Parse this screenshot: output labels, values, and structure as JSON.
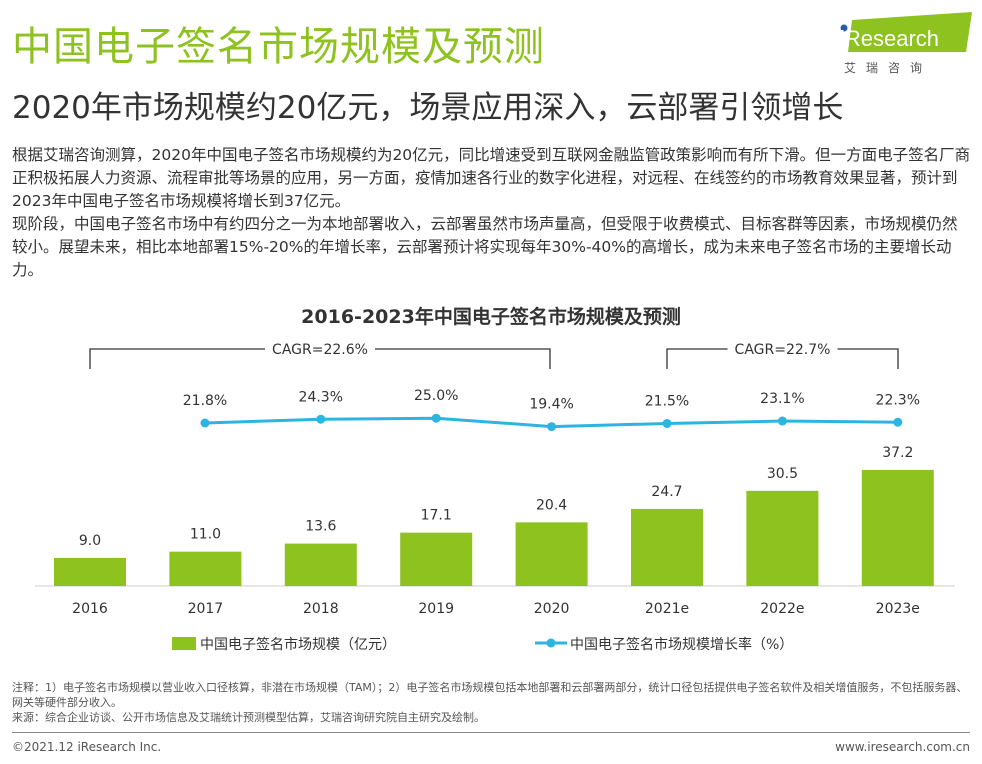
{
  "header": {
    "title": "中国电子签名市场规模及预测",
    "subtitle": "2020年市场规模约20亿元，场景应用深入，云部署引领增长"
  },
  "logo": {
    "brand": "iResearch",
    "cn": "艾 瑞 咨 询",
    "color": "#8dc21f"
  },
  "body": {
    "paragraphs": [
      "根据艾瑞咨询测算，2020年中国电子签名市场规模约为20亿元，同比增速受到互联网金融监管政策影响而有所下滑。但一方面电子签名厂商正积极拓展人力资源、流程审批等场景的应用，另一方面，疫情加速各行业的数字化进程，对远程、在线签约的市场教育效果显著，预计到2023年中国电子签名市场规模将增长到37亿元。",
      "现阶段，中国电子签名市场中有约四分之一为本地部署收入，云部署虽然市场声量高，但受限于收费模式、目标客群等因素，市场规模仍然较小。展望未来，相比本地部署15%-20%的年增长率，云部署预计将实现每年30%-40%的高增长，成为未来电子签名市场的主要增长动力。"
    ]
  },
  "chart_data": {
    "type": "bar+line",
    "title": "2016-2023年中国电子签名市场规模及预测",
    "categories": [
      "2016",
      "2017",
      "2018",
      "2019",
      "2020",
      "2021e",
      "2022e",
      "2023e"
    ],
    "series": [
      {
        "name": "中国电子签名市场规模（亿元）",
        "type": "bar",
        "color": "#8dc21f",
        "values": [
          9.0,
          11.0,
          13.6,
          17.1,
          20.4,
          24.7,
          30.5,
          37.2
        ]
      },
      {
        "name": "中国电子签名市场规模增长率（%）",
        "type": "line",
        "color": "#2bb5e0",
        "values": [
          null,
          21.8,
          24.3,
          25.0,
          19.4,
          21.5,
          23.1,
          22.3
        ]
      }
    ],
    "annotations": [
      {
        "label": "CAGR=22.6%",
        "from": "2016",
        "to": "2020"
      },
      {
        "label": "CAGR=22.7%",
        "from": "2021e",
        "to": "2023e"
      }
    ],
    "legend": "bottom",
    "grid": false
  },
  "notes": {
    "note": "注释：1）电子签名市场规模以营业收入口径核算，非潜在市场规模（TAM）；2）电子签名市场规模包括本地部署和云部署两部分，统计口径包括提供电子签名软件及相关增值服务，不包括服务器、网关等硬件部分收入。",
    "source": "来源：综合企业访谈、公开市场信息及艾瑞统计预测模型估算，艾瑞咨询研究院自主研究及绘制。"
  },
  "footer": {
    "copyright": "©2021.12 iResearch Inc.",
    "url": "www.iresearch.com.cn"
  }
}
